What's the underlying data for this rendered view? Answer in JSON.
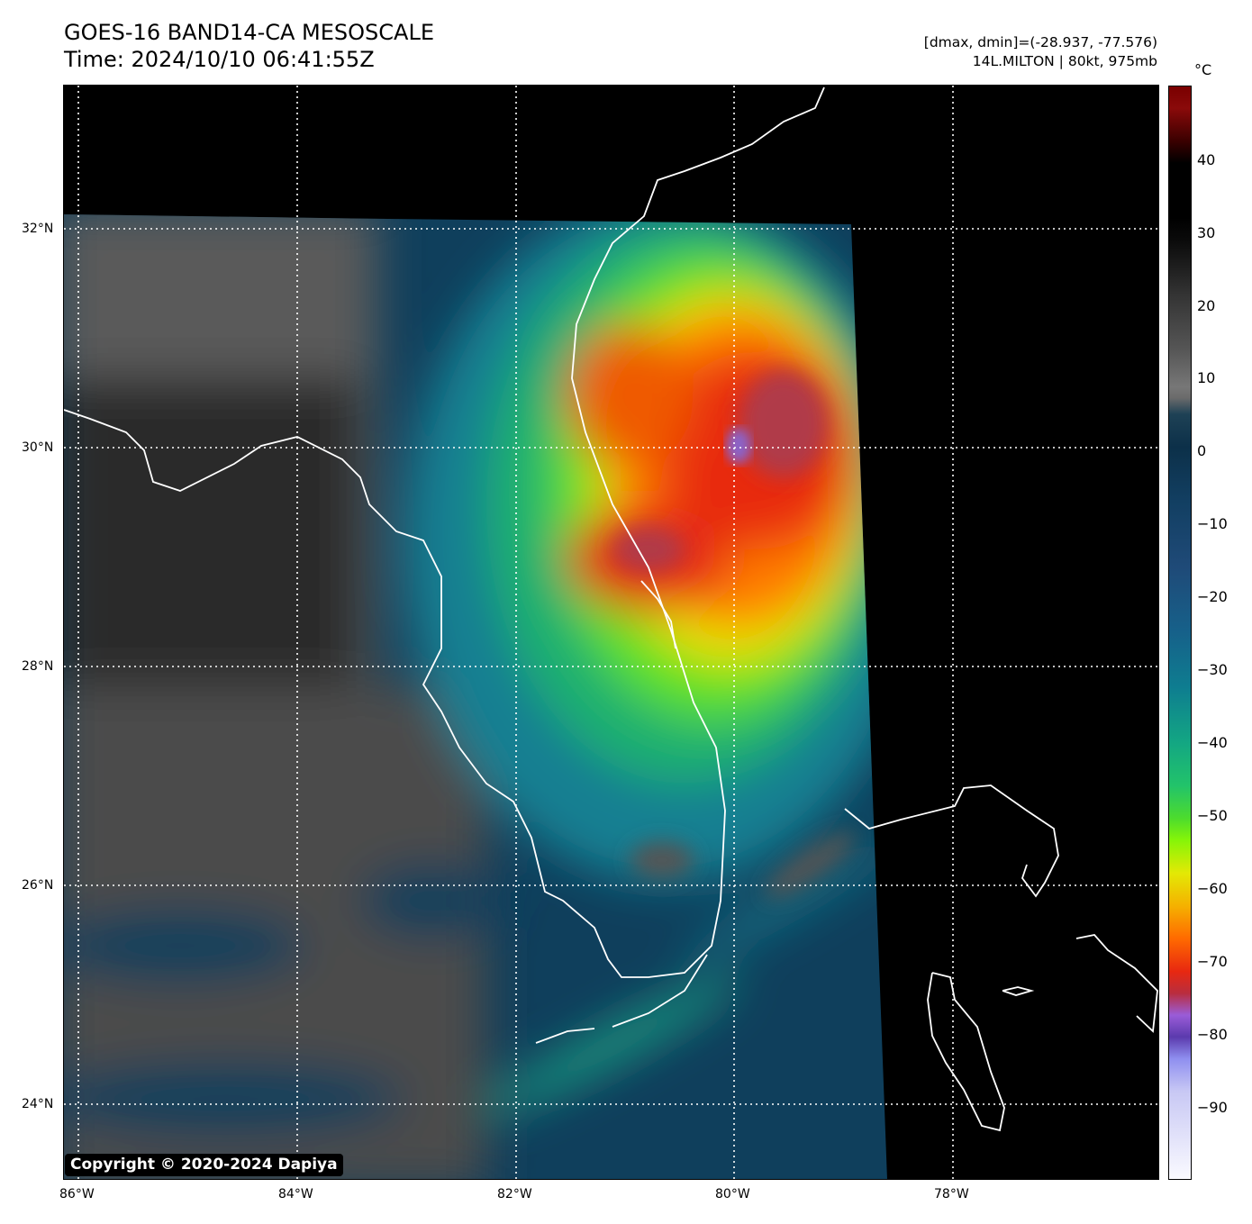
{
  "header": {
    "title": "GOES-16 BAND14-CA MESOSCALE",
    "time": "Time: 2024/10/10 06:41:55Z",
    "range": "[dmax, dmin]=(-28.937, -77.576)",
    "storm": "14L.MILTON | 80kt, 975mb"
  },
  "map": {
    "lat_labels": [
      "32°N",
      "30°N",
      "28°N",
      "26°N",
      "24°N"
    ],
    "lon_labels": [
      "86°W",
      "84°W",
      "82°W",
      "80°W",
      "78°W"
    ],
    "copyright": "Copyright © 2020-2024 Dapiya"
  },
  "colorbar": {
    "unit": "°C",
    "min": -100,
    "max": 50,
    "ticks": [
      "40",
      "30",
      "20",
      "10",
      "0",
      "−10",
      "−20",
      "−30",
      "−40",
      "−50",
      "−60",
      "−70",
      "−80",
      "−90"
    ]
  }
}
